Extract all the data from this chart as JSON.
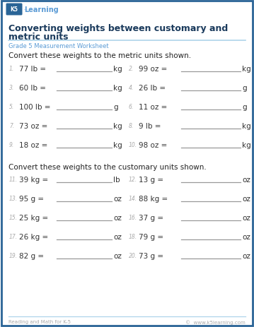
{
  "title_line1": "Converting weights between customary and",
  "title_line2": "metric units",
  "subtitle": "Grade 5 Measurement Worksheet",
  "section1_instruction": "Convert these weights to the metric units shown.",
  "section2_instruction": "Convert these weights to the customary units shown.",
  "problems_section1": [
    [
      "1.",
      "77 lb =",
      "kg"
    ],
    [
      "2.",
      "99 oz =",
      "kg"
    ],
    [
      "3.",
      "60 lb =",
      "kg"
    ],
    [
      "4.",
      "26 lb =",
      "g"
    ],
    [
      "5.",
      "100 lb =",
      "g"
    ],
    [
      "6.",
      "11 oz =",
      "g"
    ],
    [
      "7.",
      "73 oz =",
      "kg"
    ],
    [
      "8.",
      "9 lb =",
      "kg"
    ],
    [
      "9.",
      "18 oz =",
      "kg"
    ],
    [
      "10.",
      "98 oz =",
      "kg"
    ]
  ],
  "problems_section2": [
    [
      "11.",
      "39 kg =",
      "lb"
    ],
    [
      "12.",
      "13 g =",
      "oz"
    ],
    [
      "13.",
      "95 g =",
      "oz"
    ],
    [
      "14.",
      "88 kg =",
      "oz"
    ],
    [
      "15.",
      "25 kg =",
      "oz"
    ],
    [
      "16.",
      "37 g =",
      "oz"
    ],
    [
      "17.",
      "26 kg =",
      "oz"
    ],
    [
      "18.",
      "79 g =",
      "oz"
    ],
    [
      "19.",
      "82 g =",
      "oz"
    ],
    [
      "20.",
      "73 g =",
      "oz"
    ]
  ],
  "bg_color": "#ffffff",
  "border_color": "#2a6496",
  "title_color": "#1a3a5c",
  "subtitle_color": "#5b9bd5",
  "instruction_color": "#222222",
  "problem_color": "#333333",
  "number_color": "#aaaaaa",
  "line_color": "#999999",
  "footer_color": "#aaaaaa",
  "divider_color": "#aed4ea",
  "footer_left": "Reading and Math for K-5",
  "footer_right": "©  www.k5learning.com",
  "logo_k5_bg": "#2a6496",
  "logo_learning_color": "#5b9bd5",
  "watermark_color": "#e8e8f0"
}
